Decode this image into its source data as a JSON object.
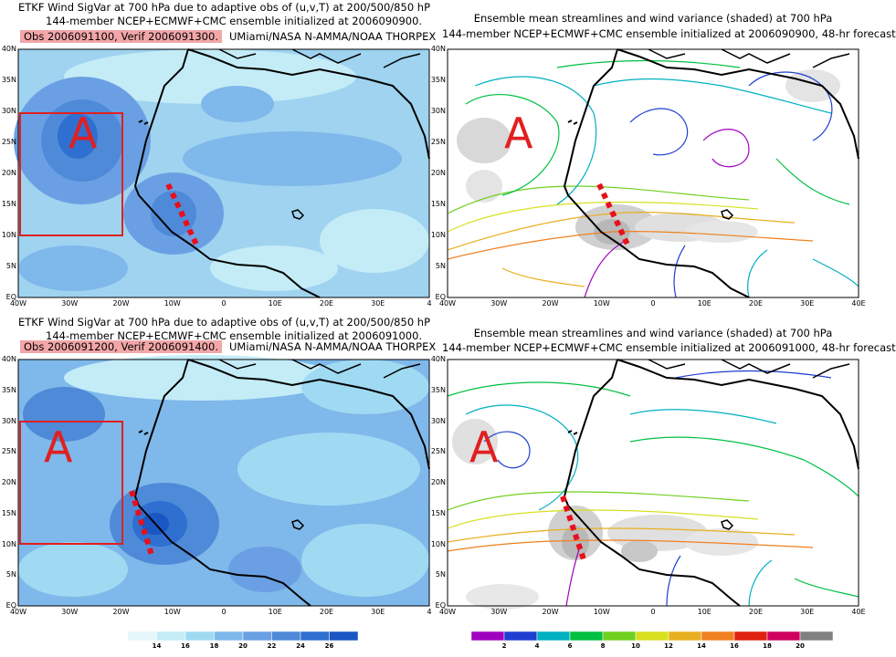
{
  "panels": [
    {
      "id": "sigvar-top",
      "title_line1": "ETKF Wind SigVar at 700 hPa due to adaptive obs of (u,v,T) at 200/500/850 hP",
      "title_line2": "144-member NCEP+ECMWF+CMC ensemble initialized at 2006090900.",
      "obs_label": "Obs 2006091100, Verif 2006091300.",
      "credit": "UMiami/NASA N-AMMA/NOAA THORPEX",
      "marker": "A"
    },
    {
      "id": "stream-top",
      "title_line1": "Ensemble mean streamlines and wind variance (shaded) at 700 hPa",
      "title_line2": "144-member NCEP+ECMWF+CMC ensemble initialized at 2006090900, 48-hr forecast",
      "marker": "A"
    },
    {
      "id": "sigvar-bottom",
      "title_line1": "ETKF Wind SigVar at 700 hPa due to adaptive obs of (u,v,T) at 200/500/850 hP",
      "title_line2": "144-member NCEP+ECMWF+CMC ensemble initialized at 2006091000.",
      "obs_label": "Obs 2006091200, Verif 2006091400.",
      "credit": "UMiami/NASA N-AMMA/NOAA THORPEX",
      "marker": "A"
    },
    {
      "id": "stream-bottom",
      "title_line1": "Ensemble mean streamlines and wind variance (shaded) at 700 hPa",
      "title_line2": "144-member NCEP+ECMWF+CMC ensemble initialized at 2006091000, 48-hr forecast",
      "marker": "A"
    }
  ],
  "lat_labels": [
    "40N",
    "35N",
    "30N",
    "25N",
    "20N",
    "15N",
    "10N",
    "5N",
    "EQ"
  ],
  "lon_labels_left_top": [
    "40W",
    "30W",
    "20W",
    "10W",
    "0",
    "10E",
    "20E",
    "30E",
    "4"
  ],
  "lon_labels_right": [
    "40W",
    "30W",
    "20W",
    "10W",
    "0",
    "10E",
    "20E",
    "30E",
    "40E"
  ],
  "lon_labels_left_bottom": [
    "40W",
    "30W",
    "20W",
    "10W",
    "0",
    "10E",
    "20E",
    "30E",
    "4"
  ],
  "colorbar_left": {
    "labels": [
      "14",
      "16",
      "18",
      "20",
      "22",
      "24",
      "26"
    ],
    "colors": [
      "#e6f7fc",
      "#c4ecf7",
      "#9fdaf2",
      "#7fb8ea",
      "#6aa0e3",
      "#4f8ad8",
      "#2f6fd0",
      "#1a56c4"
    ]
  },
  "colorbar_right": {
    "labels": [
      "2",
      "4",
      "6",
      "8",
      "10",
      "12",
      "14",
      "16",
      "18",
      "20"
    ],
    "colors": [
      "#a000c0",
      "#1f3fd0",
      "#00b0c0",
      "#00c040",
      "#70d020",
      "#d8e020",
      "#e8b020",
      "#f08020",
      "#e02010",
      "#d00060",
      "#808080"
    ]
  },
  "colors": {
    "target_box": "#e02020",
    "flight_track": "#e8101c",
    "marker": "#e02020",
    "obs_highlight": "#f2a6a8"
  }
}
